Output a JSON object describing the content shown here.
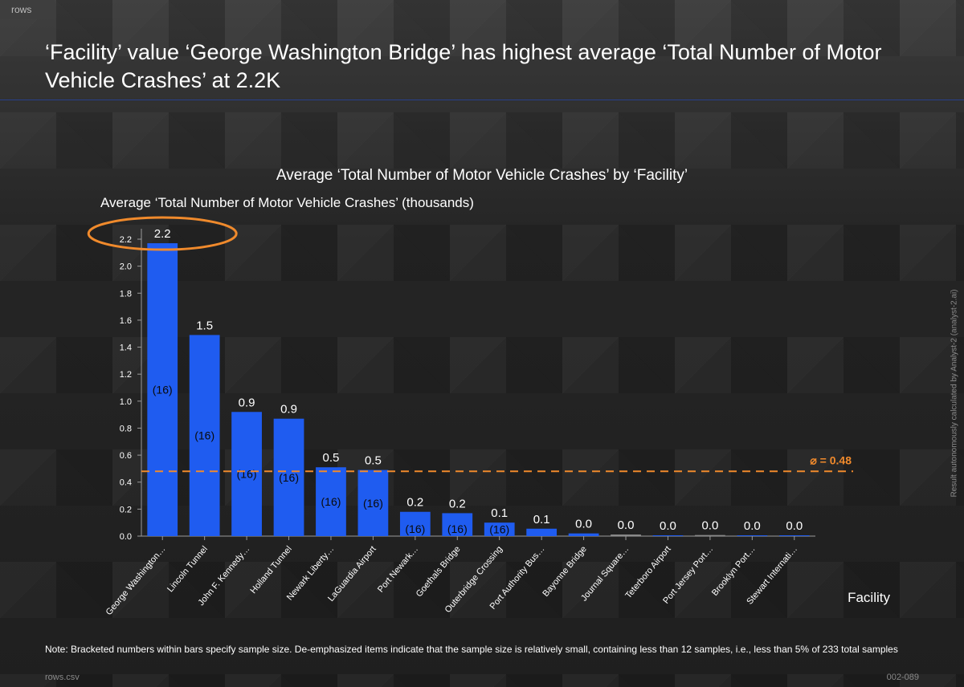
{
  "app": {
    "tag": "rows"
  },
  "headline": "‘Facility’ value ‘George Washington Bridge’ has highest average ‘Total Number of Motor Vehicle Crashes’ at 2.2K",
  "side_note": "Result autonomously calculated by Analyst-2 (analyst-2.ai)",
  "footnote": "Note: Bracketed numbers within bars specify sample size.   De-emphasized items indicate that the sample size is relatively small, containing less than 12 samples, i.e., less than 5% of 233 total samples",
  "source": "rows.csv",
  "code": "002-089",
  "colors": {
    "bar": "#1f5cf0",
    "bar_muted": "#8a8a8a",
    "mean": "#f08a2c",
    "highlight": "#f08a2c"
  },
  "chart_data": {
    "type": "bar",
    "title": "Average ‘Total Number of Motor Vehicle Crashes’ by ‘Facility’",
    "ylabel": "Average ‘Total Number of Motor Vehicle Crashes’ (thousands)",
    "xlabel": "Facility",
    "ylim": [
      0,
      2.2
    ],
    "yticks": [
      "0.0",
      "0.2",
      "0.4",
      "0.6",
      "0.8",
      "1.0",
      "1.2",
      "1.4",
      "1.6",
      "1.8",
      "2.0",
      "2.2"
    ],
    "categories": [
      "George Washington…",
      "Lincoln Tunnel",
      "John F. Kennedy…",
      "Holland Tunnel",
      "Newark Liberty…",
      "LaGuardia Airport",
      "Port Newark…",
      "Goethals Bridge",
      "Outerbridge Crossing",
      "Port Authority Bus…",
      "Bayonne Bridge",
      "Journal Square…",
      "Teterboro Airport",
      "Port Jersey Port…",
      "Brooklyn Port…",
      "Stewart Internati…"
    ],
    "values": [
      2.17,
      1.49,
      0.92,
      0.87,
      0.51,
      0.49,
      0.18,
      0.17,
      0.1,
      0.055,
      0.02,
      0.012,
      0.006,
      0.008,
      0.004,
      0.002
    ],
    "value_labels": [
      "2.2",
      "1.5",
      "0.9",
      "0.9",
      "0.5",
      "0.5",
      "0.2",
      "0.2",
      "0.1",
      "0.1",
      "0.0",
      "0.0",
      "0.0",
      "0.0",
      "0.0",
      "0.0"
    ],
    "sample_sizes": [
      "(16)",
      "(16)",
      "(16)",
      "(16)",
      "(16)",
      "(16)",
      "(16)",
      "(16)",
      "(16)",
      "",
      "",
      "",
      "",
      "",
      "",
      ""
    ],
    "muted": [
      false,
      false,
      false,
      false,
      false,
      false,
      false,
      false,
      false,
      false,
      false,
      true,
      false,
      true,
      false,
      false
    ],
    "mean": 0.48,
    "mean_label": "⌀ = 0.48",
    "highlight_category": "George Washington…"
  }
}
